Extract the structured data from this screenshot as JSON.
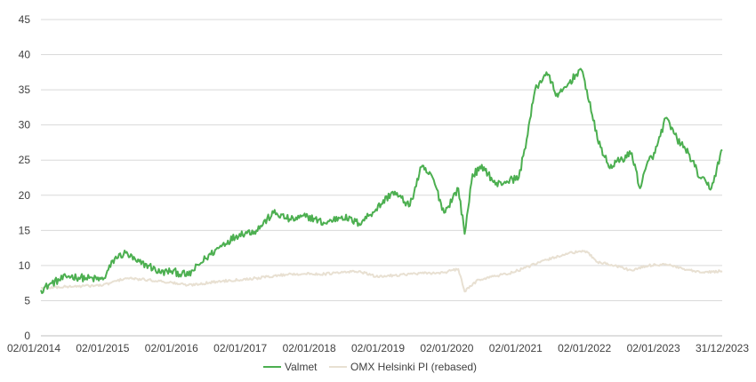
{
  "chart_data": {
    "type": "line",
    "xlabel": "",
    "ylabel": "",
    "ylim": [
      0,
      45
    ],
    "yticks": [
      0,
      5,
      10,
      15,
      20,
      25,
      30,
      35,
      40,
      45
    ],
    "x_tick_labels": [
      "02/01/2014",
      "02/01/2015",
      "02/01/2016",
      "02/01/2017",
      "02/01/2018",
      "02/01/2019",
      "02/01/2020",
      "02/01/2021",
      "02/01/2022",
      "02/01/2023",
      "31/12/2023"
    ],
    "grid": "horizontal",
    "legend_position": "bottom",
    "series": [
      {
        "name": "Valmet",
        "color": "#4caf50",
        "x": [
          "2014-01-02",
          "2014-03-01",
          "2014-06-01",
          "2014-09-01",
          "2014-12-01",
          "2015-02-01",
          "2015-04-01",
          "2015-06-01",
          "2015-08-01",
          "2015-10-01",
          "2015-12-01",
          "2016-03-01",
          "2016-06-01",
          "2016-09-01",
          "2016-12-01",
          "2017-03-01",
          "2017-06-01",
          "2017-09-01",
          "2017-12-01",
          "2018-03-01",
          "2018-06-01",
          "2018-09-01",
          "2018-12-01",
          "2019-03-01",
          "2019-06-01",
          "2019-08-01",
          "2019-10-01",
          "2019-12-01",
          "2020-02-15",
          "2020-03-20",
          "2020-05-01",
          "2020-07-01",
          "2020-09-01",
          "2020-11-01",
          "2021-01-04",
          "2021-02-15",
          "2021-04-01",
          "2021-06-01",
          "2021-08-01",
          "2021-10-01",
          "2021-12-01",
          "2022-01-03",
          "2022-03-01",
          "2022-05-01",
          "2022-07-01",
          "2022-09-01",
          "2022-10-15",
          "2022-12-01",
          "2023-01-03",
          "2023-03-01",
          "2023-05-01",
          "2023-07-01",
          "2023-09-01",
          "2023-11-01",
          "2023-12-29"
        ],
        "y": [
          6.5,
          7.5,
          8.5,
          8.2,
          8.0,
          11.0,
          11.8,
          10.5,
          10.0,
          9.0,
          9.2,
          8.6,
          11.0,
          13.0,
          14.5,
          15.0,
          17.5,
          16.5,
          17.0,
          16.0,
          17.0,
          16.0,
          18.0,
          20.5,
          18.5,
          24.0,
          22.5,
          17.5,
          21.0,
          14.5,
          23.0,
          24.0,
          21.5,
          22.0,
          22.5,
          28.0,
          35.0,
          37.5,
          34.0,
          36.0,
          38.0,
          35.0,
          28.0,
          24.0,
          25.0,
          26.0,
          21.0,
          25.0,
          26.0,
          31.0,
          28.0,
          26.0,
          22.5,
          21.0,
          26.5
        ]
      },
      {
        "name": "OMX Helsinki PI (rebased)",
        "color": "#e8e0d2",
        "x": [
          "2014-01-02",
          "2014-06-01",
          "2014-12-01",
          "2015-04-01",
          "2015-10-01",
          "2016-03-01",
          "2016-09-01",
          "2017-03-01",
          "2017-09-01",
          "2018-03-01",
          "2018-09-01",
          "2018-12-01",
          "2019-06-01",
          "2019-12-01",
          "2020-02-15",
          "2020-03-20",
          "2020-06-01",
          "2020-12-01",
          "2021-06-01",
          "2021-10-01",
          "2022-01-03",
          "2022-03-01",
          "2022-06-01",
          "2022-09-01",
          "2022-12-01",
          "2023-03-01",
          "2023-06-01",
          "2023-09-01",
          "2023-12-29"
        ],
        "y": [
          6.8,
          7.0,
          7.2,
          8.2,
          7.8,
          7.2,
          7.8,
          8.2,
          8.8,
          8.8,
          9.2,
          8.4,
          8.8,
          9.0,
          9.5,
          6.3,
          8.0,
          9.0,
          10.8,
          11.8,
          12.0,
          10.5,
          10.0,
          9.3,
          10.0,
          10.2,
          9.5,
          9.0,
          9.2
        ]
      }
    ]
  }
}
